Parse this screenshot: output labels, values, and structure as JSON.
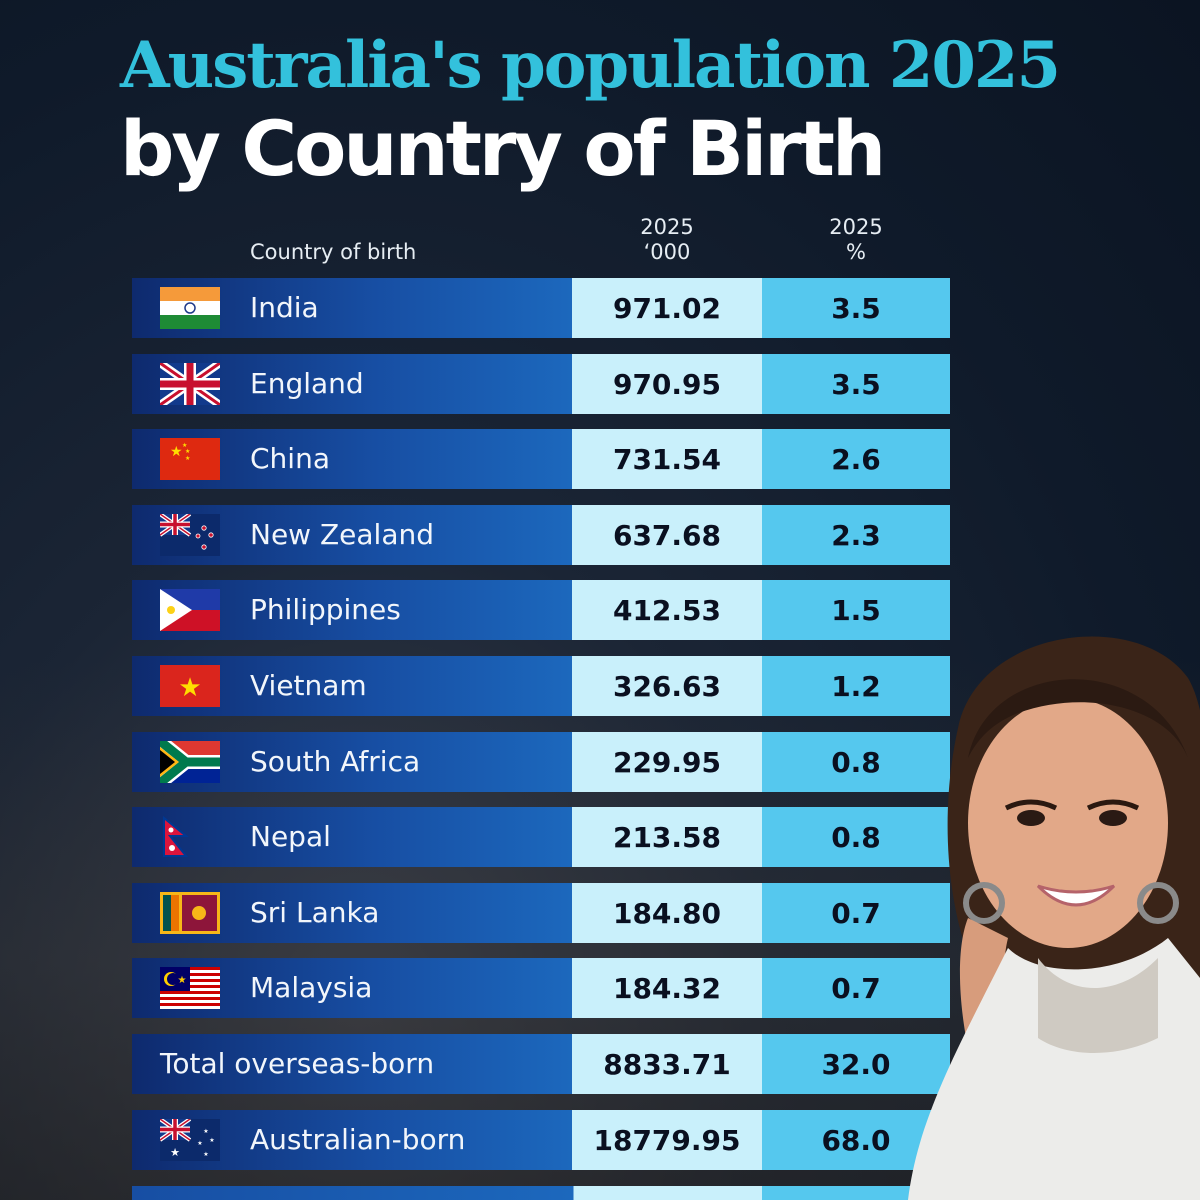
{
  "title": {
    "line1": "Australia's population 2025",
    "line2": "by Country of Birth"
  },
  "headers": {
    "country": "Country of birth",
    "value_line1": "2025",
    "value_line2": "‘000",
    "pct_line1": "2025",
    "pct_line2": "%"
  },
  "rows": [
    {
      "country": "India",
      "value": "971.02",
      "pct": "3.5",
      "flag": "india-flag"
    },
    {
      "country": "England",
      "value": "970.95",
      "pct": "3.5",
      "flag": "uk-flag"
    },
    {
      "country": "China",
      "value": "731.54",
      "pct": "2.6",
      "flag": "china-flag"
    },
    {
      "country": "New Zealand",
      "value": "637.68",
      "pct": "2.3",
      "flag": "new-zealand-flag"
    },
    {
      "country": "Philippines",
      "value": "412.53",
      "pct": "1.5",
      "flag": "philippines-flag"
    },
    {
      "country": "Vietnam",
      "value": "326.63",
      "pct": "1.2",
      "flag": "vietnam-flag"
    },
    {
      "country": "South Africa",
      "value": "229.95",
      "pct": "0.8",
      "flag": "south-africa-flag"
    },
    {
      "country": "Nepal",
      "value": "213.58",
      "pct": "0.8",
      "flag": "nepal-flag"
    },
    {
      "country": "Sri Lanka",
      "value": "184.80",
      "pct": "0.7",
      "flag": "sri-lanka-flag"
    },
    {
      "country": "Malaysia",
      "value": "184.32",
      "pct": "0.7",
      "flag": "malaysia-flag"
    },
    {
      "country": "Total overseas-born",
      "value": "8833.71",
      "pct": "32.0",
      "flag": ""
    },
    {
      "country": "Australian-born",
      "value": "18779.95",
      "pct": "68.0",
      "flag": "australia-flag"
    }
  ],
  "chart_data": {
    "type": "table",
    "title": "Australia's population 2025 by Country of Birth",
    "columns": [
      "Country of birth",
      "2025 ‘000",
      "2025 %"
    ],
    "categories": [
      "India",
      "England",
      "China",
      "New Zealand",
      "Philippines",
      "Vietnam",
      "South Africa",
      "Nepal",
      "Sri Lanka",
      "Malaysia",
      "Total overseas-born",
      "Australian-born"
    ],
    "series": [
      {
        "name": "2025 ‘000",
        "values": [
          971.02,
          970.95,
          731.54,
          637.68,
          412.53,
          326.63,
          229.95,
          213.58,
          184.8,
          184.32,
          8833.71,
          18779.95
        ]
      },
      {
        "name": "2025 %",
        "values": [
          3.5,
          3.5,
          2.6,
          2.3,
          1.5,
          1.2,
          0.8,
          0.8,
          0.7,
          0.7,
          32.0,
          68.0
        ]
      }
    ]
  },
  "colors": {
    "title_accent": "#33c1dc",
    "value_cell": "#c9f0fb",
    "pct_cell": "#55c8ee",
    "name_cell": "#174ea3"
  }
}
